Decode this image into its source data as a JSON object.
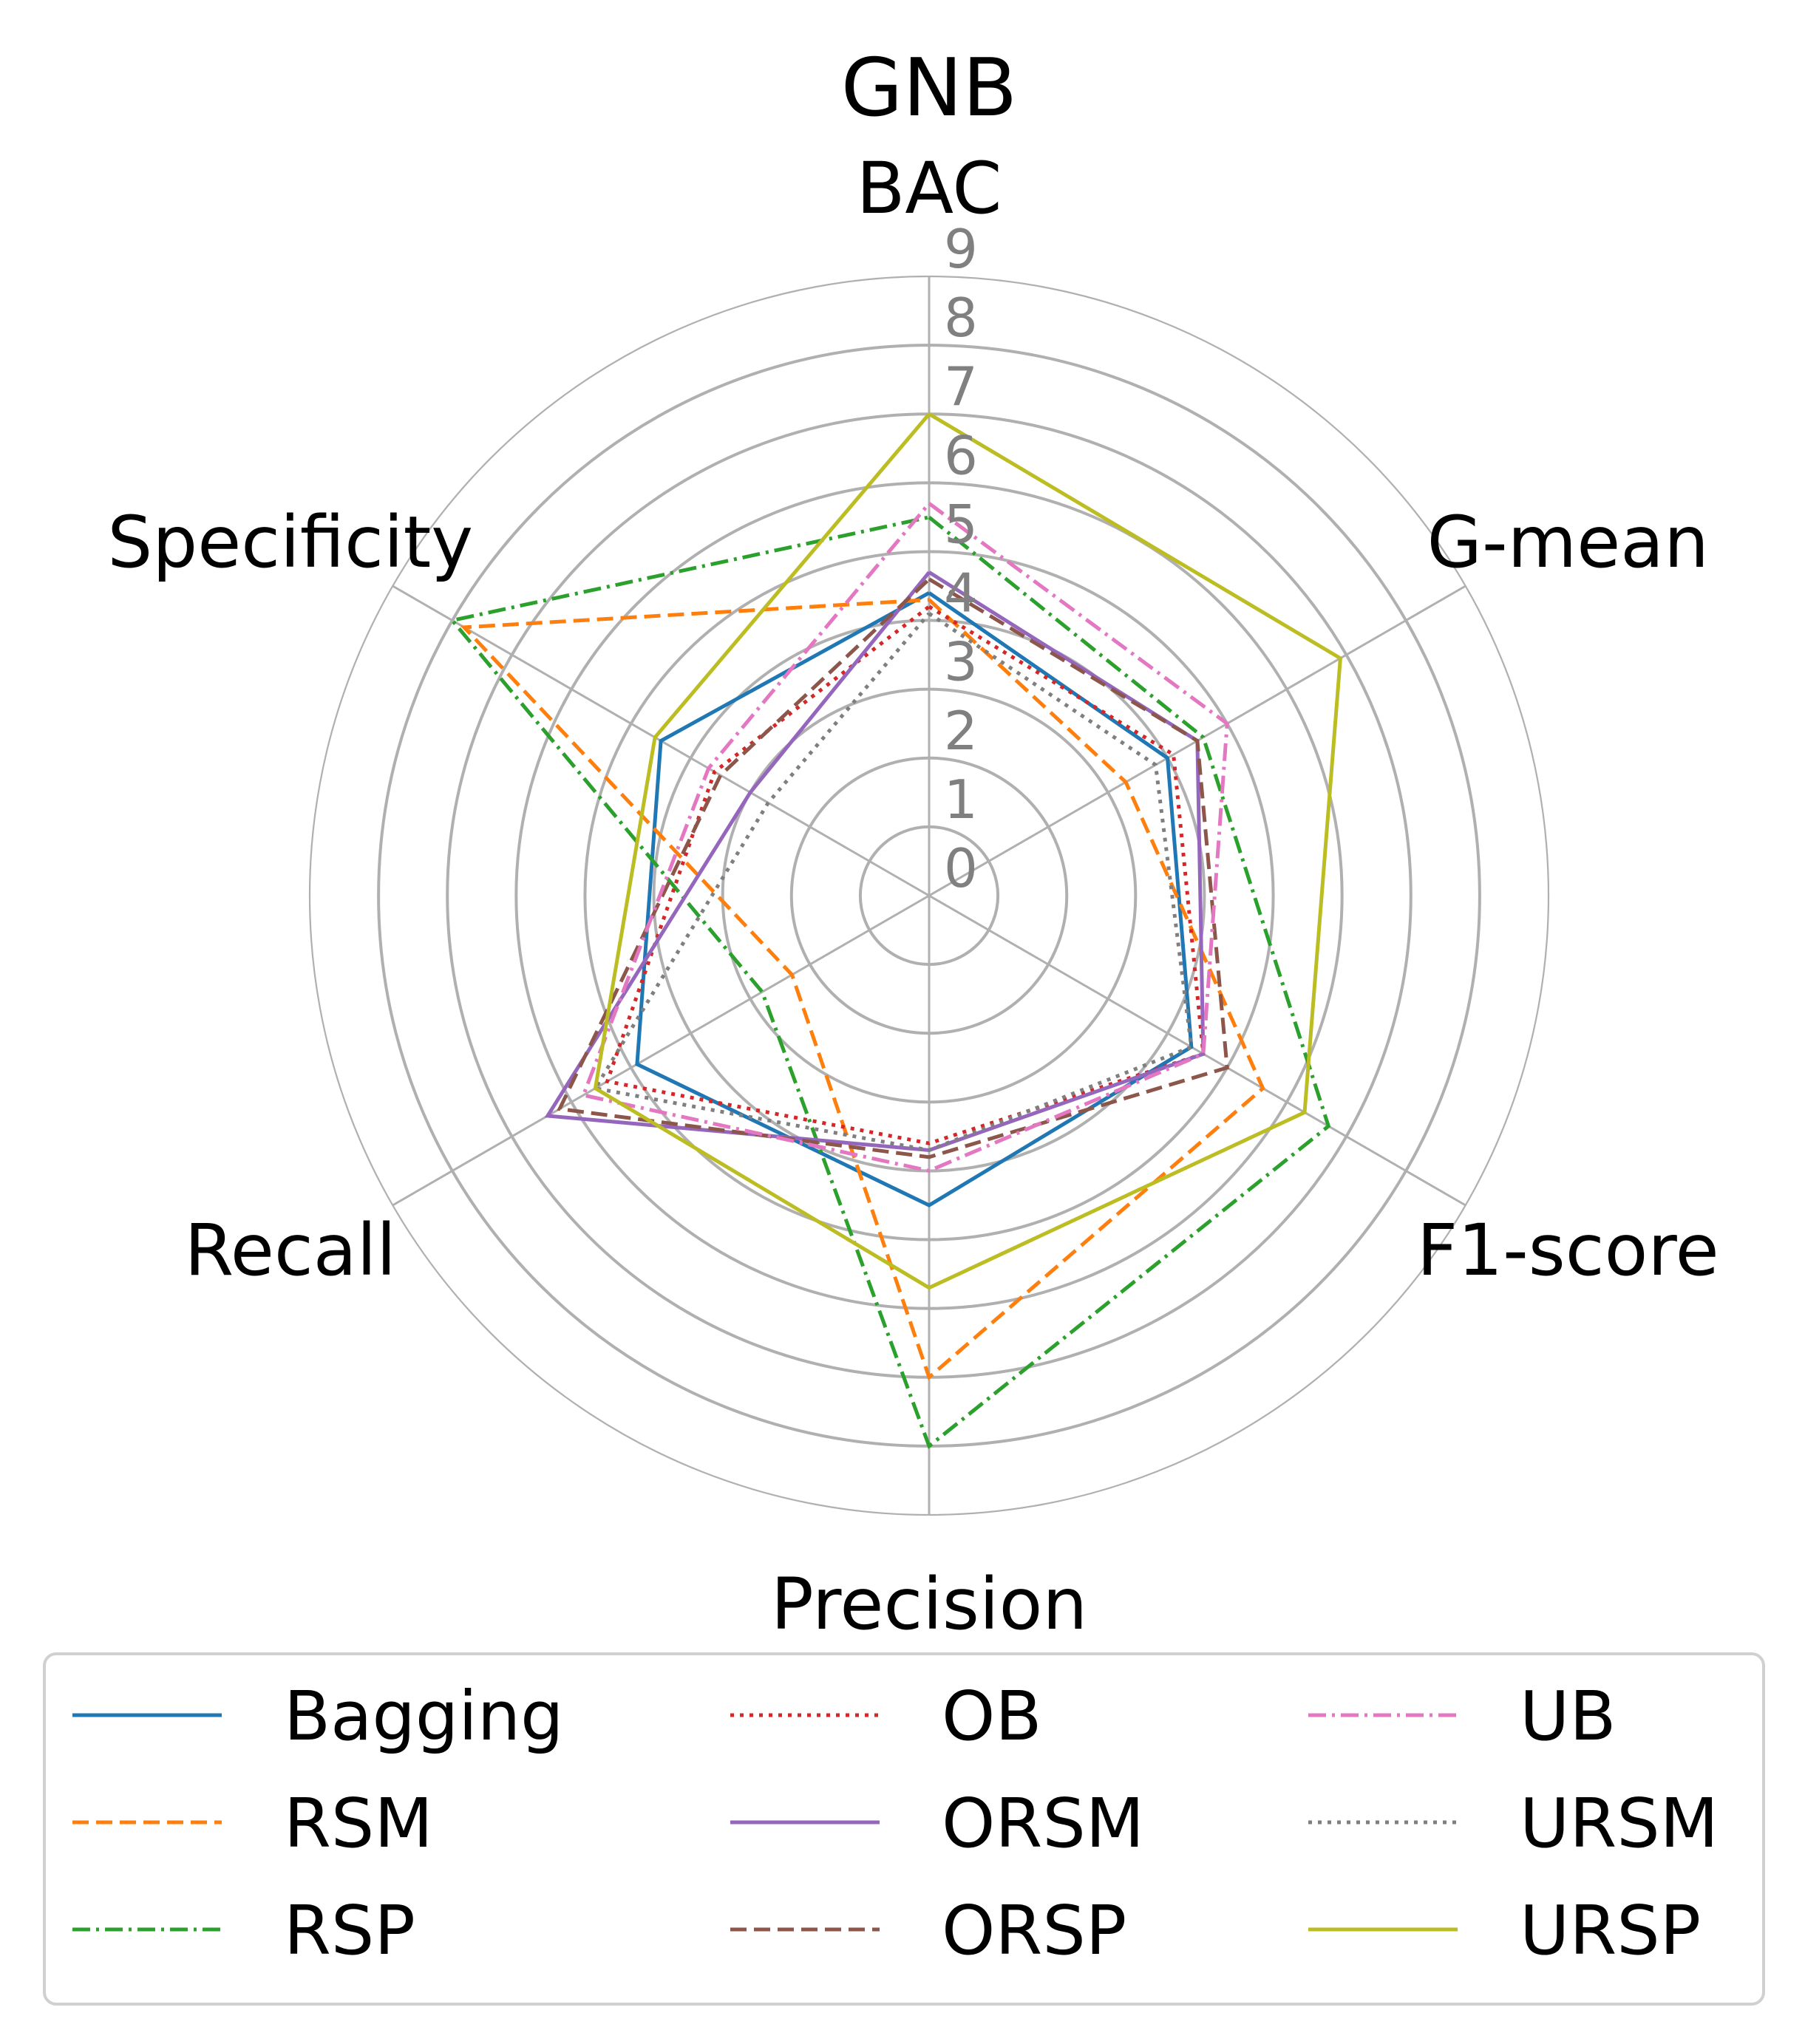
{
  "chart_data": {
    "type": "radar",
    "title": "GNB",
    "axes": [
      "BAC",
      "G-mean",
      "F1-score",
      "Precision",
      "Recall",
      "Specificity"
    ],
    "rlim": [
      0,
      9
    ],
    "rticks": [
      "0",
      "1",
      "2",
      "3",
      "4",
      "5",
      "6",
      "7",
      "8",
      "9"
    ],
    "grid": true,
    "legend_position": "bottom",
    "legend_columns": 3,
    "series": [
      {
        "name": "Bagging",
        "color": "#1f77b4",
        "dash": "solid",
        "values": [
          4.4,
          4.0,
          4.4,
          4.5,
          4.9,
          4.5
        ]
      },
      {
        "name": "RSM",
        "color": "#ff7f0e",
        "dash": "dashed",
        "values": [
          4.3,
          3.3,
          5.6,
          7.0,
          2.3,
          7.8
        ]
      },
      {
        "name": "RSP",
        "color": "#2ca02c",
        "dash": "dashdot",
        "values": [
          5.5,
          4.6,
          6.7,
          8.0,
          2.8,
          8.0
        ]
      },
      {
        "name": "OB",
        "color": "#d62728",
        "dash": "dotted",
        "values": [
          4.2,
          4.1,
          4.6,
          3.6,
          5.4,
          3.6
        ]
      },
      {
        "name": "ORSM",
        "color": "#9467bd",
        "dash": "solid",
        "values": [
          4.7,
          4.5,
          4.6,
          3.7,
          6.4,
          3.0
        ]
      },
      {
        "name": "ORSP",
        "color": "#8c564b",
        "dash": "dashed",
        "values": [
          4.6,
          4.5,
          5.0,
          3.8,
          6.2,
          3.5
        ]
      },
      {
        "name": "UB",
        "color": "#e377c2",
        "dash": "dashdot",
        "values": [
          5.7,
          5.0,
          4.6,
          4.0,
          5.8,
          3.7
        ]
      },
      {
        "name": "URSM",
        "color": "#7f7f7f",
        "dash": "dotted",
        "values": [
          4.1,
          3.8,
          4.4,
          3.7,
          5.6,
          2.7
        ]
      },
      {
        "name": "URSP",
        "color": "#bcbd22",
        "dash": "solid",
        "values": [
          7.0,
          6.9,
          6.3,
          5.7,
          5.6,
          4.6
        ]
      }
    ]
  }
}
